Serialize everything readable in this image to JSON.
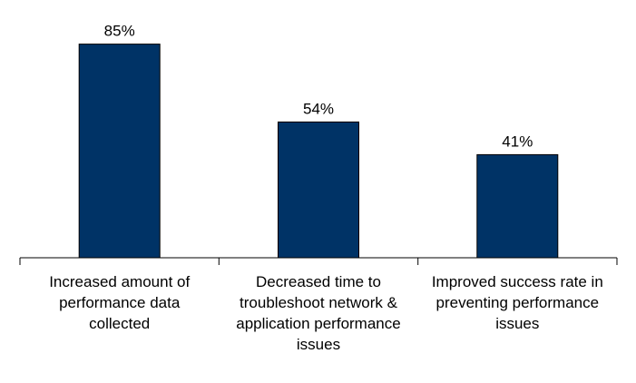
{
  "chart_data": {
    "type": "bar",
    "categories": [
      [
        "Increased amount of",
        "performance data",
        "collected"
      ],
      [
        "Decreased time to",
        "troubleshoot network &",
        "application performance",
        "issues"
      ],
      [
        "Improved success rate in",
        "preventing performance",
        "issues"
      ]
    ],
    "values": [
      85,
      54,
      41
    ],
    "value_labels": [
      "85%",
      "54%",
      "41%"
    ],
    "ylim": [
      0,
      100
    ],
    "grid": false,
    "bar_color": "#003366",
    "axis_color": "#000000"
  }
}
